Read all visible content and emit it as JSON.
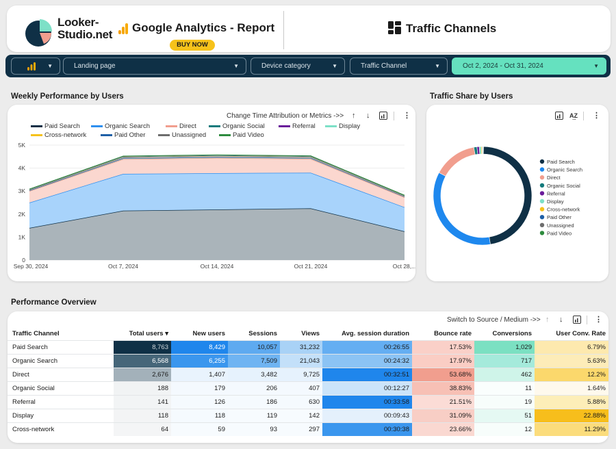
{
  "header": {
    "logo_line1": "Looker-",
    "logo_line2": "Studio.net",
    "report_title": "Google Analytics - Report",
    "buy_label": "BUY NOW",
    "page_title": "Traffic Channels"
  },
  "filters": {
    "landing_page": "Landing page",
    "device_category": "Device category",
    "traffic_channel": "Traffic Channel",
    "date_range": "Oct 2, 2024 - Oct 31, 2024"
  },
  "weekly": {
    "section_title": "Weekly Performance by Users",
    "toolbar_label": "Change Time Attribution or Metrics ->>"
  },
  "share": {
    "section_title": "Traffic Share by Users"
  },
  "perf": {
    "section_title": "Performance Overview",
    "toolbar_label": "Switch to Source / Medium ->>",
    "columns": [
      "Traffic Channel",
      "Total users ▾",
      "New users",
      "Sessions",
      "Views",
      "Avg. session duration",
      "Bounce rate",
      "Conversions",
      "User Conv. Rate"
    ],
    "rows": [
      [
        "Paid Search",
        "8,763",
        "8,429",
        "10,057",
        "31,232",
        "00:26:55",
        "17.53%",
        "1,029",
        "6.79%"
      ],
      [
        "Organic Search",
        "6,568",
        "6,255",
        "7,509",
        "21,043",
        "00:24:32",
        "17.97%",
        "717",
        "5.63%"
      ],
      [
        "Direct",
        "2,676",
        "1,407",
        "3,482",
        "9,725",
        "00:32:51",
        "53.68%",
        "462",
        "12.2%"
      ],
      [
        "Organic Social",
        "188",
        "179",
        "206",
        "407",
        "00:12:27",
        "38.83%",
        "11",
        "1.64%"
      ],
      [
        "Referral",
        "141",
        "126",
        "186",
        "630",
        "00:33:58",
        "21.51%",
        "19",
        "5.88%"
      ],
      [
        "Display",
        "118",
        "118",
        "119",
        "142",
        "00:09:43",
        "31.09%",
        "51",
        "22.88%"
      ],
      [
        "Cross-network",
        "64",
        "59",
        "93",
        "297",
        "00:30:38",
        "23.66%",
        "12",
        "11.29%"
      ]
    ],
    "cell_colors": [
      [
        "#0f3046",
        "#1f86ec",
        "#5eaaf0",
        "#a9d2f6",
        "#64aef2",
        "#fad0c8",
        "#7be0c2",
        "#fde9ae"
      ],
      [
        "#466679",
        "#3a96ee",
        "#6fb4f2",
        "#c3e0f9",
        "#8bc3f4",
        "#facdc4",
        "#a5eadb",
        "#fdecb8"
      ],
      [
        "#a3b1ba",
        "#e9f3fd",
        "#e6f2fd",
        "#e6f2fd",
        "#1f86ec",
        "#f19e8e",
        "#cff4e9",
        "#fbd86c"
      ],
      [
        "#f1f3f4",
        "#f4f9fe",
        "#f4f9fe",
        "#f4f9fe",
        "#cbe4fa",
        "#f7c0b5",
        "#fafefd",
        "#fef9ed"
      ],
      [
        "#f2f4f5",
        "#f5fafe",
        "#f5fafe",
        "#f5fafe",
        "#1f86ec",
        "#fbdcd6",
        "#f7fdfb",
        "#fdeeb8"
      ],
      [
        "#f3f4f5",
        "#f5fafe",
        "#f7fbfe",
        "#f7fbfe",
        "#e4f0fc",
        "#f8cec5",
        "#e5f9f3",
        "#f7be1c"
      ],
      [
        "#f4f5f6",
        "#f7fbfe",
        "#f7fbfe",
        "#f7fbfe",
        "#3a96ee",
        "#fad8d1",
        "#f7fdfb",
        "#fbdc7c"
      ]
    ],
    "text_colors": [
      [
        "#ffffff",
        "#ffffff",
        "#1b1b1b",
        "#1b1b1b",
        "#1b1b1b",
        "#1b1b1b",
        "#1b1b1b",
        "#1b1b1b"
      ],
      [
        "#ffffff",
        "#ffffff",
        "#1b1b1b",
        "#1b1b1b",
        "#1b1b1b",
        "#1b1b1b",
        "#1b1b1b",
        "#1b1b1b"
      ]
    ]
  },
  "chart_data": [
    {
      "type": "area",
      "x": [
        "Sep 30, 2024",
        "Oct 7, 2024",
        "Oct 14, 2024",
        "Oct 21, 2024",
        "Oct 28,..."
      ],
      "ylim": [
        0,
        5000
      ],
      "yticks": [
        "0",
        "1K",
        "2K",
        "3K",
        "4K",
        "5K"
      ],
      "legend_position": "top",
      "series": [
        {
          "name": "Paid Search",
          "color": "#0f3046",
          "values": [
            1400,
            2150,
            2200,
            2250,
            1250
          ]
        },
        {
          "name": "Organic Search",
          "color": "#2e8fef",
          "values": [
            1100,
            1600,
            1580,
            1550,
            1050
          ]
        },
        {
          "name": "Direct",
          "color": "#f19e8e",
          "values": [
            500,
            640,
            660,
            600,
            430
          ]
        },
        {
          "name": "Organic Social",
          "color": "#127a7c",
          "values": [
            20,
            30,
            30,
            30,
            20
          ]
        },
        {
          "name": "Referral",
          "color": "#6a1b9a",
          "values": [
            15,
            25,
            25,
            25,
            15
          ]
        },
        {
          "name": "Display",
          "color": "#7de0c7",
          "values": [
            15,
            20,
            20,
            20,
            15
          ]
        },
        {
          "name": "Cross-network",
          "color": "#f6c21b",
          "values": [
            10,
            15,
            15,
            15,
            10
          ]
        },
        {
          "name": "Paid Other",
          "color": "#1d5fa6",
          "values": [
            10,
            15,
            15,
            15,
            10
          ]
        },
        {
          "name": "Unassigned",
          "color": "#6d6d6d",
          "values": [
            10,
            15,
            15,
            15,
            10
          ]
        },
        {
          "name": "Paid Video",
          "color": "#2e8b3e",
          "values": [
            10,
            15,
            15,
            15,
            10
          ]
        }
      ]
    },
    {
      "type": "pie",
      "labels": [
        "Paid Search",
        "Organic Search",
        "Direct",
        "Organic Social",
        "Referral",
        "Display",
        "Cross-network",
        "Paid Other",
        "Unassigned",
        "Paid Video"
      ],
      "values": [
        8763,
        6568,
        2676,
        188,
        141,
        118,
        64,
        40,
        20,
        15
      ],
      "colors": [
        "#0f3046",
        "#1e88ee",
        "#f19e8e",
        "#127a7c",
        "#6a1b9a",
        "#7de0c7",
        "#f6c21b",
        "#1d5fa6",
        "#6d6d6d",
        "#2e8b3e"
      ],
      "legend_position": "right"
    }
  ]
}
